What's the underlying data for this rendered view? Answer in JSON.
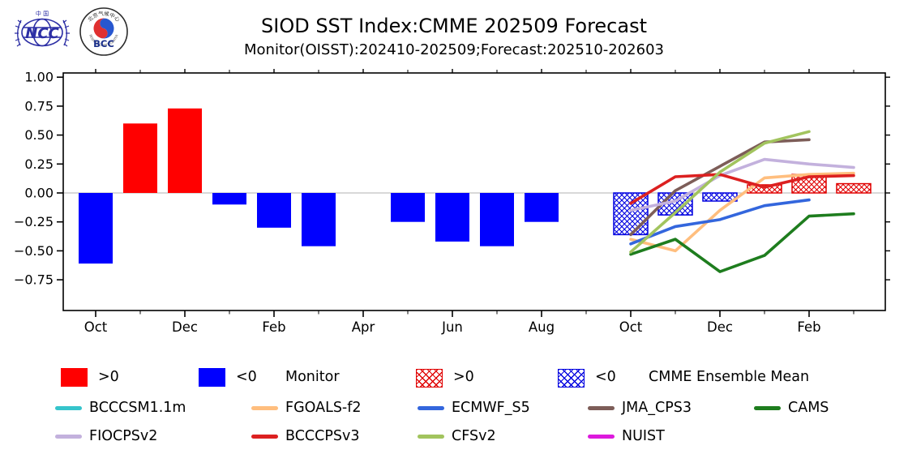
{
  "header": {
    "title": "SIOD SST Index:CMME 202509 Forecast",
    "subtitle": "Monitor(OISST):202410-202509;Forecast:202510-202603",
    "logos": {
      "ncc_text": "NCC",
      "ncc_top": "中 国",
      "bcc_text": "BCC",
      "bcc_top": "北京气候中心",
      "bcc_bottom": "BEIJING CLIMATE CENTER"
    }
  },
  "legend": {
    "monitor_pos": ">0",
    "monitor_neg": "<0",
    "monitor_label": "Monitor",
    "cmme_pos": ">0",
    "cmme_neg": "<0",
    "cmme_label": "CMME Ensemble Mean",
    "solid_pos_color": "#ff0000",
    "solid_neg_color": "#0000ff",
    "hatch_pos_color": "#e00000",
    "hatch_neg_color": "#0000e0"
  },
  "chart_data": {
    "type": "bar",
    "title": "SIOD SST Index:CMME 202509 Forecast",
    "subtitle": "Monitor(OISST):202410-202509;Forecast:202510-202603",
    "xlabel": "",
    "ylabel": "",
    "ylim": [
      -1.02,
      1.04
    ],
    "grid": false,
    "zero_line_color": "#b0b0b0",
    "legend_position": "bottom",
    "months": [
      "2024-10",
      "2024-11",
      "2024-12",
      "2025-01",
      "2025-02",
      "2025-03",
      "2025-04",
      "2025-05",
      "2025-06",
      "2025-07",
      "2025-08",
      "2025-09",
      "2025-10",
      "2025-11",
      "2025-12",
      "2026-01",
      "2026-02",
      "2026-03"
    ],
    "x_tick_labels": [
      "Oct",
      "Dec",
      "Feb",
      "Apr",
      "Jun",
      "Aug",
      "Oct",
      "Dec",
      "Feb"
    ],
    "y_ticks": [
      1.0,
      0.75,
      0.5,
      0.25,
      0.0,
      -0.25,
      -0.5,
      -0.75
    ],
    "y_tick_labels": [
      "1.00",
      "0.75",
      "0.50",
      "0.25",
      "0.00",
      "−0.25",
      "−0.50",
      "−0.75"
    ],
    "monitor": {
      "label": "Monitor",
      "pos_color": "#ff0000",
      "neg_color": "#0000ff",
      "values": [
        -0.61,
        0.6,
        0.73,
        -0.1,
        -0.3,
        -0.46,
        0.0,
        -0.25,
        -0.42,
        -0.46,
        -0.25,
        0.0
      ]
    },
    "cmme": {
      "label": "CMME Ensemble Mean",
      "pos_color": "#e00000",
      "neg_color": "#0000e0",
      "start_month_index": 12,
      "values": [
        -0.36,
        -0.19,
        -0.07,
        0.07,
        0.16,
        0.08
      ]
    },
    "models": [
      {
        "name": "BCCCSM1.1m",
        "color": "#35c4cb",
        "values": [
          null,
          null,
          null,
          null,
          null,
          null
        ]
      },
      {
        "name": "FGOALS-f2",
        "color": "#ffbe7e",
        "values": [
          -0.4,
          -0.5,
          -0.15,
          0.13,
          0.16,
          0.17
        ]
      },
      {
        "name": "ECMWF_S5",
        "color": "#3366dd",
        "values": [
          -0.44,
          -0.29,
          -0.23,
          -0.11,
          -0.06,
          null
        ]
      },
      {
        "name": "JMA_CPS3",
        "color": "#7d5d58",
        "values": [
          -0.36,
          0.02,
          0.23,
          0.44,
          0.46,
          null
        ]
      },
      {
        "name": "CAMS",
        "color": "#1e7d1e",
        "values": [
          -0.53,
          -0.4,
          -0.68,
          -0.54,
          -0.2,
          -0.18
        ]
      },
      {
        "name": "FIOCPSv2",
        "color": "#c3b1dd",
        "values": [
          -0.15,
          -0.07,
          0.15,
          0.29,
          0.25,
          0.22
        ]
      },
      {
        "name": "BCCCPSv3",
        "color": "#dc2020",
        "values": [
          -0.09,
          0.14,
          0.16,
          0.05,
          0.14,
          0.15
        ]
      },
      {
        "name": "CFSv2",
        "color": "#a2c45e",
        "values": [
          -0.51,
          -0.17,
          0.18,
          0.43,
          0.53,
          null
        ]
      },
      {
        "name": "NUIST",
        "color": "#dd1add",
        "values": [
          null,
          null,
          null,
          null,
          null,
          null
        ]
      }
    ]
  }
}
